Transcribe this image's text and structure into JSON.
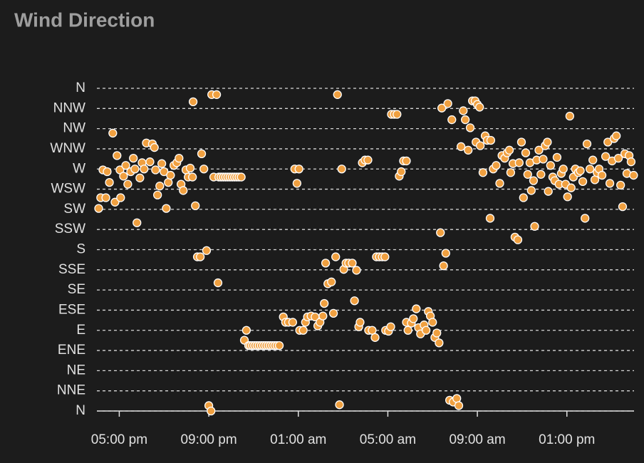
{
  "chart_data": {
    "type": "scatter",
    "title": "Wind Direction",
    "color": "#f0a040",
    "grid": true,
    "xlim": [
      16,
      40
    ],
    "xticks": [
      {
        "value": 17,
        "label": "05:00 pm"
      },
      {
        "value": 21,
        "label": "09:00 pm"
      },
      {
        "value": 25,
        "label": "01:00 am"
      },
      {
        "value": 29,
        "label": "05:00 am"
      },
      {
        "value": 33,
        "label": "09:00 am"
      },
      {
        "value": 37,
        "label": "01:00 pm"
      }
    ],
    "ylim": [
      0,
      360
    ],
    "yticks": [
      {
        "value": 0,
        "label": "N"
      },
      {
        "value": 22.5,
        "label": "NNE"
      },
      {
        "value": 45,
        "label": "NE"
      },
      {
        "value": 67.5,
        "label": "ENE"
      },
      {
        "value": 90,
        "label": "E"
      },
      {
        "value": 112.5,
        "label": "ESE"
      },
      {
        "value": 135,
        "label": "SE"
      },
      {
        "value": 157.5,
        "label": "SSE"
      },
      {
        "value": 180,
        "label": "S"
      },
      {
        "value": 202.5,
        "label": "SSW"
      },
      {
        "value": 225,
        "label": "SW"
      },
      {
        "value": 247.5,
        "label": "WSW"
      },
      {
        "value": 270,
        "label": "W"
      },
      {
        "value": 292.5,
        "label": "WNW"
      },
      {
        "value": 315,
        "label": "NW"
      },
      {
        "value": 337.5,
        "label": "NNW"
      },
      {
        "value": 360,
        "label": "N"
      }
    ],
    "x": [
      16.08,
      16.17,
      16.4,
      16.27,
      16.46,
      16.56,
      16.71,
      16.81,
      16.9,
      17.03,
      17.06,
      17.19,
      17.29,
      17.38,
      17.51,
      17.63,
      17.7,
      17.79,
      17.92,
      18.02,
      18.11,
      18.21,
      18.37,
      18.48,
      18.57,
      18.62,
      18.71,
      18.81,
      18.9,
      19.0,
      19.1,
      19.19,
      19.29,
      19.44,
      19.57,
      19.67,
      19.76,
      19.86,
      19.98,
      20.08,
      20.17,
      20.27,
      20.3,
      20.4,
      20.49,
      20.62,
      20.68,
      20.78,
      20.9,
      21.0,
      21.1,
      21.13,
      21.35,
      21.22,
      21.41,
      21.45,
      21.55,
      21.65,
      21.75,
      21.85,
      21.95,
      22.05,
      22.15,
      22.25,
      22.35,
      22.45,
      22.59,
      22.68,
      22.78,
      22.85,
      22.95,
      23.05,
      23.15,
      23.25,
      23.35,
      23.45,
      23.55,
      23.65,
      23.75,
      23.85,
      23.95,
      24.05,
      24.15,
      24.33,
      24.43,
      24.56,
      24.75,
      24.84,
      25.03,
      24.94,
      25.06,
      25.22,
      25.32,
      25.41,
      25.57,
      25.75,
      25.87,
      25.97,
      26.16,
      26.1,
      26.22,
      26.32,
      26.48,
      26.57,
      26.67,
      26.75,
      26.84,
      26.94,
      27.03,
      27.13,
      27.25,
      27.41,
      27.51,
      27.6,
      27.7,
      27.76,
      27.86,
      27.98,
      28.11,
      28.14,
      28.3,
      28.43,
      28.49,
      28.62,
      28.75,
      28.87,
      28.9,
      29.03,
      29.13,
      29.16,
      29.29,
      29.41,
      29.51,
      29.6,
      29.7,
      29.83,
      29.83,
      29.9,
      30.05,
      30.14,
      30.27,
      30.37,
      30.46,
      30.62,
      30.71,
      30.81,
      30.9,
      31.0,
      31.1,
      31.19,
      31.29,
      31.35,
      31.41,
      31.49,
      31.59,
      31.68,
      31.76,
      31.92,
      32.08,
      32.17,
      31.86,
      32.27,
      32.37,
      32.46,
      32.59,
      32.68,
      32.78,
      32.9,
      33.0,
      33.1,
      32.94,
      33.13,
      33.25,
      33.35,
      33.44,
      33.6,
      33.57,
      33.71,
      33.84,
      34.0,
      34.1,
      34.22,
      34.33,
      34.43,
      34.49,
      34.59,
      34.68,
      34.81,
      34.87,
      34.97,
      35.06,
      35.16,
      35.25,
      35.35,
      35.41,
      35.51,
      35.56,
      35.65,
      35.75,
      35.84,
      35.94,
      36.03,
      36.13,
      36.17,
      36.27,
      36.37,
      36.46,
      36.56,
      36.65,
      36.75,
      36.84,
      36.94,
      37.03,
      37.13,
      37.19,
      37.29,
      37.38,
      37.51,
      37.6,
      37.71,
      37.81,
      37.9,
      38.03,
      38.16,
      38.25,
      38.35,
      38.44,
      38.57,
      38.73,
      38.83,
      38.92,
      39.02,
      39.11,
      39.21,
      39.3,
      39.4,
      39.49,
      39.59,
      39.68,
      39.78,
      39.87,
      39.98
    ],
    "values": [
      226,
      238,
      238,
      269,
      267,
      255,
      310,
      233,
      285,
      269,
      238,
      262,
      274,
      253,
      267,
      282,
      270,
      210,
      260,
      277,
      270,
      299,
      278,
      298,
      294,
      269,
      241,
      251,
      276,
      267,
      226,
      255,
      263,
      274,
      277,
      282,
      253,
      246,
      269,
      261,
      271,
      261,
      345,
      229,
      172,
      172,
      287,
      270,
      179,
      6,
      0,
      353,
      353,
      261,
      143,
      261,
      261,
      261,
      261,
      261,
      261,
      261,
      261,
      261,
      261,
      261,
      79,
      90,
      73,
      73,
      73,
      73,
      73,
      73,
      73,
      73,
      73,
      73,
      73,
      73,
      73,
      73,
      73,
      105,
      99,
      99,
      99,
      270,
      270,
      254,
      90,
      90,
      99,
      105,
      106,
      105,
      95,
      99,
      120,
      106,
      165,
      142,
      144,
      109,
      172,
      353,
      7,
      270,
      158,
      165,
      165,
      165,
      123,
      157,
      94,
      99,
      277,
      280,
      280,
      90,
      90,
      82,
      172,
      172,
      172,
      172,
      90,
      89,
      94,
      331,
      331,
      331,
      262,
      267,
      279,
      279,
      99,
      90,
      98,
      103,
      114,
      93,
      86,
      96,
      90,
      111,
      106,
      99,
      82,
      87,
      76,
      199,
      338,
      162,
      176,
      343,
      12,
      10,
      14,
      6,
      325,
      295,
      335,
      325,
      291,
      316,
      346,
      346,
      342,
      339,
      300,
      296,
      266,
      307,
      302,
      302,
      215,
      270,
      274,
      254,
      285,
      282,
      288,
      291,
      266,
      276,
      194,
      191,
      277,
      300,
      238,
      288,
      264,
      277,
      246,
      257,
      206,
      280,
      291,
      264,
      281,
      296,
      300,
      245,
      274,
      261,
      257,
      283,
      253,
      265,
      270,
      253,
      239,
      329,
      249,
      261,
      270,
      266,
      268,
      256,
      215,
      298,
      270,
      280,
      258,
      266,
      270,
      263,
      284,
      300,
      254,
      279,
      304,
      307,
      282,
      252,
      228,
      287,
      265,
      285,
      278,
      263
    ]
  }
}
